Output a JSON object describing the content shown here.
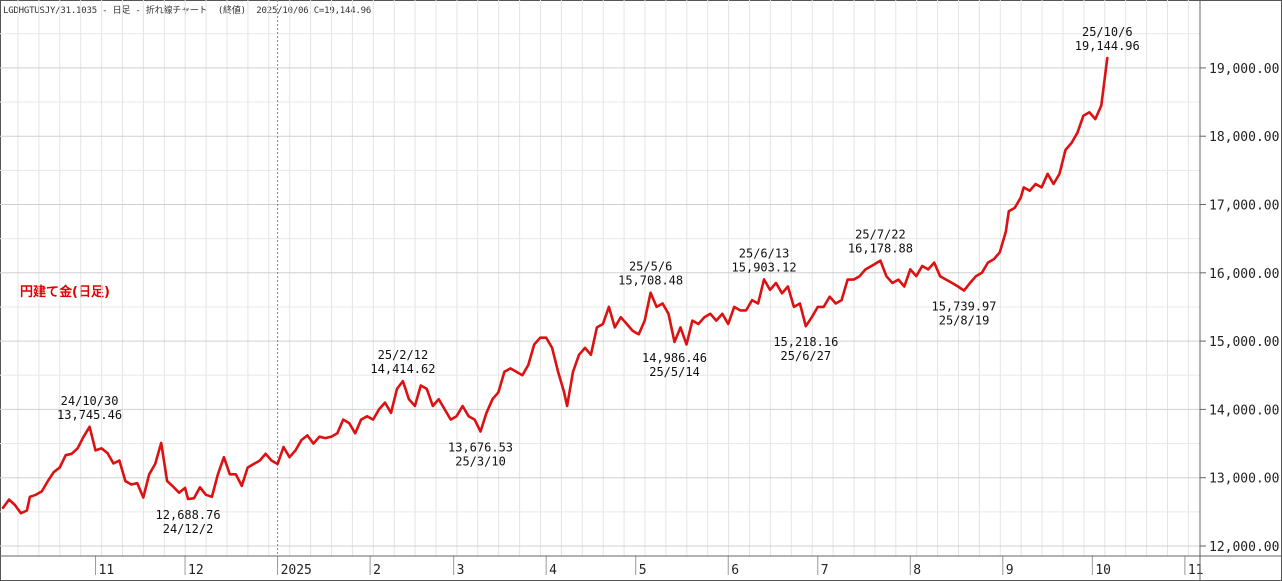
{
  "header": {
    "series_code": "LGDHGTUSJY/31.1035",
    "period": "日足",
    "chart_kind": "折れ線チャート",
    "price_type": "(終値)",
    "date": "2025/10/06",
    "close_label": "C=19,144.96"
  },
  "chart_data": {
    "type": "line",
    "title": "円建て金(日足)",
    "xlabel": "",
    "ylabel": "",
    "x_tick_labels": [
      "11",
      "12",
      "2025",
      "2",
      "3",
      "4",
      "5",
      "6",
      "7",
      "8",
      "9",
      "10",
      "11"
    ],
    "y_tick_labels": [
      "12,000.00",
      "13,000.00",
      "14,000.00",
      "15,000.00",
      "16,000.00",
      "17,000.00",
      "18,000.00",
      "19,000.00"
    ],
    "ylim": [
      12000,
      19700
    ],
    "grid": true,
    "series": [
      {
        "name": "",
        "color": "#dd1111",
        "points": [
          [
            "2024-10-01",
            12560
          ],
          [
            "2024-10-03",
            12680
          ],
          [
            "2024-10-05",
            12600
          ],
          [
            "2024-10-07",
            12480
          ],
          [
            "2024-10-09",
            12520
          ],
          [
            "2024-10-10",
            12720
          ],
          [
            "2024-10-12",
            12750
          ],
          [
            "2024-10-14",
            12800
          ],
          [
            "2024-10-16",
            12950
          ],
          [
            "2024-10-18",
            13080
          ],
          [
            "2024-10-20",
            13150
          ],
          [
            "2024-10-22",
            13330
          ],
          [
            "2024-10-24",
            13350
          ],
          [
            "2024-10-26",
            13430
          ],
          [
            "2024-10-28",
            13600
          ],
          [
            "2024-10-30",
            13745.46
          ],
          [
            "2024-11-01",
            13400
          ],
          [
            "2024-11-03",
            13430
          ],
          [
            "2024-11-05",
            13360
          ],
          [
            "2024-11-07",
            13210
          ],
          [
            "2024-11-09",
            13250
          ],
          [
            "2024-11-11",
            12950
          ],
          [
            "2024-11-13",
            12900
          ],
          [
            "2024-11-15",
            12920
          ],
          [
            "2024-11-17",
            12710
          ],
          [
            "2024-11-19",
            13050
          ],
          [
            "2024-11-21",
            13200
          ],
          [
            "2024-11-23",
            13510
          ],
          [
            "2024-11-25",
            12950
          ],
          [
            "2024-11-27",
            12870
          ],
          [
            "2024-11-29",
            12780
          ],
          [
            "2024-12-01",
            12850
          ],
          [
            "2024-12-02",
            12688.76
          ],
          [
            "2024-12-04",
            12700
          ],
          [
            "2024-12-06",
            12860
          ],
          [
            "2024-12-08",
            12750
          ],
          [
            "2024-12-10",
            12720
          ],
          [
            "2024-12-12",
            13050
          ],
          [
            "2024-12-14",
            13300
          ],
          [
            "2024-12-16",
            13050
          ],
          [
            "2024-12-18",
            13050
          ],
          [
            "2024-12-20",
            12880
          ],
          [
            "2024-12-22",
            13150
          ],
          [
            "2024-12-24",
            13200
          ],
          [
            "2024-12-26",
            13250
          ],
          [
            "2024-12-28",
            13350
          ],
          [
            "2024-12-30",
            13250
          ],
          [
            "2025-01-01",
            13200
          ],
          [
            "2025-01-03",
            13450
          ],
          [
            "2025-01-05",
            13300
          ],
          [
            "2025-01-07",
            13400
          ],
          [
            "2025-01-09",
            13550
          ],
          [
            "2025-01-11",
            13620
          ],
          [
            "2025-01-13",
            13500
          ],
          [
            "2025-01-15",
            13600
          ],
          [
            "2025-01-17",
            13580
          ],
          [
            "2025-01-19",
            13600
          ],
          [
            "2025-01-21",
            13650
          ],
          [
            "2025-01-23",
            13850
          ],
          [
            "2025-01-25",
            13800
          ],
          [
            "2025-01-27",
            13650
          ],
          [
            "2025-01-29",
            13850
          ],
          [
            "2025-01-31",
            13900
          ],
          [
            "2025-02-02",
            13850
          ],
          [
            "2025-02-04",
            14000
          ],
          [
            "2025-02-06",
            14100
          ],
          [
            "2025-02-08",
            13950
          ],
          [
            "2025-02-10",
            14300
          ],
          [
            "2025-02-12",
            14414.62
          ],
          [
            "2025-02-14",
            14150
          ],
          [
            "2025-02-16",
            14050
          ],
          [
            "2025-02-18",
            14350
          ],
          [
            "2025-02-20",
            14300
          ],
          [
            "2025-02-22",
            14050
          ],
          [
            "2025-02-24",
            14150
          ],
          [
            "2025-02-26",
            14000
          ],
          [
            "2025-02-28",
            13850
          ],
          [
            "2025-03-02",
            13900
          ],
          [
            "2025-03-04",
            14050
          ],
          [
            "2025-03-06",
            13900
          ],
          [
            "2025-03-08",
            13850
          ],
          [
            "2025-03-10",
            13676.53
          ],
          [
            "2025-03-12",
            13950
          ],
          [
            "2025-03-14",
            14150
          ],
          [
            "2025-03-16",
            14250
          ],
          [
            "2025-03-18",
            14550
          ],
          [
            "2025-03-20",
            14600
          ],
          [
            "2025-03-22",
            14550
          ],
          [
            "2025-03-24",
            14500
          ],
          [
            "2025-03-26",
            14650
          ],
          [
            "2025-03-28",
            14950
          ],
          [
            "2025-03-30",
            15050
          ],
          [
            "2025-04-01",
            15050
          ],
          [
            "2025-04-03",
            14900
          ],
          [
            "2025-04-05",
            14550
          ],
          [
            "2025-04-07",
            14250
          ],
          [
            "2025-04-08",
            14050
          ],
          [
            "2025-04-10",
            14550
          ],
          [
            "2025-04-12",
            14800
          ],
          [
            "2025-04-14",
            14900
          ],
          [
            "2025-04-16",
            14800
          ],
          [
            "2025-04-18",
            15200
          ],
          [
            "2025-04-20",
            15250
          ],
          [
            "2025-04-22",
            15500
          ],
          [
            "2025-04-24",
            15200
          ],
          [
            "2025-04-26",
            15350
          ],
          [
            "2025-04-28",
            15250
          ],
          [
            "2025-04-30",
            15150
          ],
          [
            "2025-05-02",
            15100
          ],
          [
            "2025-05-04",
            15300
          ],
          [
            "2025-05-06",
            15708.48
          ],
          [
            "2025-05-08",
            15500
          ],
          [
            "2025-05-10",
            15550
          ],
          [
            "2025-05-12",
            15400
          ],
          [
            "2025-05-14",
            14986.46
          ],
          [
            "2025-05-16",
            15200
          ],
          [
            "2025-05-18",
            14950
          ],
          [
            "2025-05-20",
            15300
          ],
          [
            "2025-05-22",
            15250
          ],
          [
            "2025-05-24",
            15350
          ],
          [
            "2025-05-26",
            15400
          ],
          [
            "2025-05-28",
            15300
          ],
          [
            "2025-05-30",
            15400
          ],
          [
            "2025-06-01",
            15250
          ],
          [
            "2025-06-03",
            15500
          ],
          [
            "2025-06-05",
            15450
          ],
          [
            "2025-06-07",
            15450
          ],
          [
            "2025-06-09",
            15600
          ],
          [
            "2025-06-11",
            15550
          ],
          [
            "2025-06-13",
            15903.12
          ],
          [
            "2025-06-15",
            15750
          ],
          [
            "2025-06-17",
            15850
          ],
          [
            "2025-06-19",
            15700
          ],
          [
            "2025-06-21",
            15800
          ],
          [
            "2025-06-23",
            15500
          ],
          [
            "2025-06-25",
            15550
          ],
          [
            "2025-06-27",
            15218.16
          ],
          [
            "2025-06-29",
            15350
          ],
          [
            "2025-07-01",
            15500
          ],
          [
            "2025-07-03",
            15500
          ],
          [
            "2025-07-05",
            15650
          ],
          [
            "2025-07-07",
            15550
          ],
          [
            "2025-07-09",
            15600
          ],
          [
            "2025-07-11",
            15900
          ],
          [
            "2025-07-13",
            15900
          ],
          [
            "2025-07-15",
            15950
          ],
          [
            "2025-07-17",
            16050
          ],
          [
            "2025-07-19",
            16100
          ],
          [
            "2025-07-22",
            16178.88
          ],
          [
            "2025-07-24",
            15950
          ],
          [
            "2025-07-26",
            15850
          ],
          [
            "2025-07-28",
            15900
          ],
          [
            "2025-07-30",
            15800
          ],
          [
            "2025-08-01",
            16050
          ],
          [
            "2025-08-03",
            15950
          ],
          [
            "2025-08-05",
            16100
          ],
          [
            "2025-08-07",
            16050
          ],
          [
            "2025-08-09",
            16150
          ],
          [
            "2025-08-11",
            15950
          ],
          [
            "2025-08-13",
            15900
          ],
          [
            "2025-08-15",
            15850
          ],
          [
            "2025-08-17",
            15800
          ],
          [
            "2025-08-19",
            15739.97
          ],
          [
            "2025-08-21",
            15850
          ],
          [
            "2025-08-23",
            15950
          ],
          [
            "2025-08-25",
            16000
          ],
          [
            "2025-08-27",
            16150
          ],
          [
            "2025-08-29",
            16200
          ],
          [
            "2025-08-31",
            16300
          ],
          [
            "2025-09-02",
            16600
          ],
          [
            "2025-09-03",
            16900
          ],
          [
            "2025-09-05",
            16950
          ],
          [
            "2025-09-07",
            17100
          ],
          [
            "2025-09-08",
            17250
          ],
          [
            "2025-09-10",
            17200
          ],
          [
            "2025-09-12",
            17300
          ],
          [
            "2025-09-14",
            17250
          ],
          [
            "2025-09-16",
            17450
          ],
          [
            "2025-09-18",
            17300
          ],
          [
            "2025-09-20",
            17450
          ],
          [
            "2025-09-22",
            17800
          ],
          [
            "2025-09-24",
            17900
          ],
          [
            "2025-09-26",
            18050
          ],
          [
            "2025-09-28",
            18300
          ],
          [
            "2025-09-30",
            18350
          ],
          [
            "2025-10-02",
            18250
          ],
          [
            "2025-10-04",
            18450
          ],
          [
            "2025-10-06",
            19144.96
          ]
        ]
      }
    ],
    "annotations": [
      {
        "date_label": "24/10/30",
        "value_label": "13,745.46",
        "x": "2024-10-30",
        "y": 13745.46,
        "side": "above"
      },
      {
        "date_label": "24/12/2",
        "value_label": "12,688.76",
        "x": "2024-12-02",
        "y": 12688.76,
        "side": "below"
      },
      {
        "date_label": "25/2/12",
        "value_label": "14,414.62",
        "x": "2025-02-12",
        "y": 14414.62,
        "side": "above"
      },
      {
        "date_label": "25/3/10",
        "value_label": "13,676.53",
        "x": "2025-03-10",
        "y": 13676.53,
        "side": "below"
      },
      {
        "date_label": "25/5/6",
        "value_label": "15,708.48",
        "x": "2025-05-06",
        "y": 15708.48,
        "side": "above"
      },
      {
        "date_label": "25/5/14",
        "value_label": "14,986.46",
        "x": "2025-05-14",
        "y": 14986.46,
        "side": "below"
      },
      {
        "date_label": "25/6/13",
        "value_label": "15,903.12",
        "x": "2025-06-13",
        "y": 15903.12,
        "side": "above"
      },
      {
        "date_label": "25/6/27",
        "value_label": "15,218.16",
        "x": "2025-06-27",
        "y": 15218.16,
        "side": "below"
      },
      {
        "date_label": "25/7/22",
        "value_label": "16,178.88",
        "x": "2025-07-22",
        "y": 16178.88,
        "side": "above"
      },
      {
        "date_label": "25/8/19",
        "value_label": "15,739.97",
        "x": "2025-08-19",
        "y": 15739.97,
        "side": "below"
      },
      {
        "date_label": "25/10/6",
        "value_label": "19,144.96",
        "x": "2025-10-06",
        "y": 19144.96,
        "side": "above"
      }
    ]
  }
}
